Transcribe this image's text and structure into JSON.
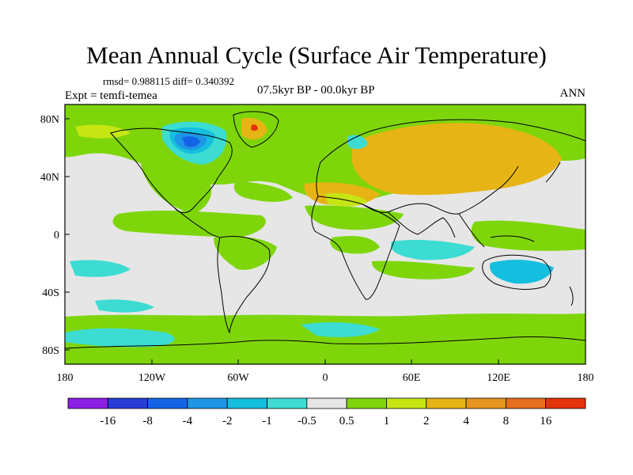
{
  "title": "Mean Annual Cycle (Surface Air Temperature)",
  "stats": "rmsd= 0.988115 diff= 0.340392",
  "period": "07.5kyr BP - 00.0kyr BP",
  "experiment": "Expt = temfi-temea",
  "season": "ANN",
  "map": {
    "lat_ticks": [
      "80N",
      "40N",
      "0",
      "40S",
      "80S"
    ],
    "lon_ticks": [
      "180",
      "120W",
      "60W",
      "0",
      "60E",
      "120E",
      "180"
    ]
  },
  "colorbar": {
    "colors": [
      "#8c1ee6",
      "#2a3cd6",
      "#1464e6",
      "#1e96e6",
      "#14bede",
      "#3cdcd2",
      "#e6e6e6",
      "#7ed60a",
      "#c6e614",
      "#e6b414",
      "#e6961e",
      "#e66e1e",
      "#e6320a"
    ],
    "labels": [
      "-16",
      "-8",
      "-4",
      "-2",
      "-1",
      "-0.5",
      "0.5",
      "1",
      "2",
      "4",
      "8",
      "16"
    ]
  },
  "colors": {
    "ocean_neutral": "#e6e6e6",
    "warm_light": "#7ed60a",
    "warm_mid": "#e6b414",
    "cool_light": "#3cdcd2",
    "cool_mid": "#14bede"
  }
}
